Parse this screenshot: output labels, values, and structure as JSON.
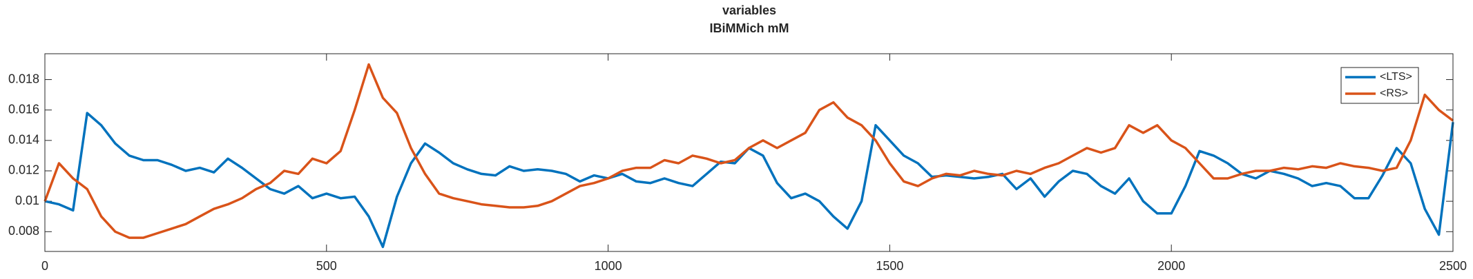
{
  "chart_data": {
    "type": "line",
    "title": "variables",
    "subtitle": "IBiMMich mM",
    "x": [
      0,
      25,
      50,
      75,
      100,
      125,
      150,
      175,
      200,
      225,
      250,
      275,
      300,
      325,
      350,
      375,
      400,
      425,
      450,
      475,
      500,
      525,
      550,
      575,
      600,
      625,
      650,
      675,
      700,
      725,
      750,
      775,
      800,
      825,
      850,
      875,
      900,
      925,
      950,
      975,
      1000,
      1025,
      1050,
      1075,
      1100,
      1125,
      1150,
      1175,
      1200,
      1225,
      1250,
      1275,
      1300,
      1325,
      1350,
      1375,
      1400,
      1425,
      1450,
      1475,
      1500,
      1525,
      1550,
      1575,
      1600,
      1625,
      1650,
      1675,
      1700,
      1725,
      1750,
      1775,
      1800,
      1825,
      1850,
      1875,
      1900,
      1925,
      1950,
      1975,
      2000,
      2025,
      2050,
      2075,
      2100,
      2125,
      2150,
      2175,
      2200,
      2225,
      2250,
      2275,
      2300,
      2325,
      2350,
      2375,
      2400,
      2425,
      2450,
      2475,
      2500
    ],
    "series": [
      {
        "name": "<LTS>",
        "color": "#0072BD",
        "values": [
          0.01,
          0.0098,
          0.0094,
          0.0158,
          0.015,
          0.0138,
          0.013,
          0.0127,
          0.0127,
          0.0124,
          0.012,
          0.0122,
          0.0119,
          0.0128,
          0.0122,
          0.0115,
          0.0108,
          0.0105,
          0.011,
          0.0102,
          0.0105,
          0.0102,
          0.0103,
          0.009,
          0.007,
          0.0103,
          0.0125,
          0.0138,
          0.0132,
          0.0125,
          0.0121,
          0.0118,
          0.0117,
          0.0123,
          0.012,
          0.0121,
          0.012,
          0.0118,
          0.0113,
          0.0117,
          0.0115,
          0.0118,
          0.0113,
          0.0112,
          0.0115,
          0.0112,
          0.011,
          0.0118,
          0.0126,
          0.0125,
          0.0135,
          0.013,
          0.0112,
          0.0102,
          0.0105,
          0.01,
          0.009,
          0.0082,
          0.01,
          0.015,
          0.014,
          0.013,
          0.0125,
          0.0116,
          0.0117,
          0.0116,
          0.0115,
          0.0116,
          0.0118,
          0.0108,
          0.0115,
          0.0103,
          0.0113,
          0.012,
          0.0118,
          0.011,
          0.0105,
          0.0115,
          0.01,
          0.0092,
          0.0092,
          0.011,
          0.0133,
          0.013,
          0.0125,
          0.0118,
          0.0115,
          0.012,
          0.0118,
          0.0115,
          0.011,
          0.0112,
          0.011,
          0.0102,
          0.0102,
          0.0117,
          0.0135,
          0.0125,
          0.0095,
          0.0078,
          0.0152
        ]
      },
      {
        "name": "<RS>",
        "color": "#D95319",
        "values": [
          0.01,
          0.0125,
          0.0115,
          0.0108,
          0.009,
          0.008,
          0.0076,
          0.0076,
          0.0079,
          0.0082,
          0.0085,
          0.009,
          0.0095,
          0.0098,
          0.0102,
          0.0108,
          0.0112,
          0.012,
          0.0118,
          0.0128,
          0.0125,
          0.0133,
          0.016,
          0.019,
          0.0168,
          0.0158,
          0.0135,
          0.0118,
          0.0105,
          0.0102,
          0.01,
          0.0098,
          0.0097,
          0.0096,
          0.0096,
          0.0097,
          0.01,
          0.0105,
          0.011,
          0.0112,
          0.0115,
          0.012,
          0.0122,
          0.0122,
          0.0127,
          0.0125,
          0.013,
          0.0128,
          0.0125,
          0.0127,
          0.0135,
          0.014,
          0.0135,
          0.014,
          0.0145,
          0.016,
          0.0165,
          0.0155,
          0.015,
          0.014,
          0.0125,
          0.0113,
          0.011,
          0.0115,
          0.0118,
          0.0117,
          0.012,
          0.0118,
          0.0117,
          0.012,
          0.0118,
          0.0122,
          0.0125,
          0.013,
          0.0135,
          0.0132,
          0.0135,
          0.015,
          0.0145,
          0.015,
          0.014,
          0.0135,
          0.0125,
          0.0115,
          0.0115,
          0.0118,
          0.012,
          0.012,
          0.0122,
          0.0121,
          0.0123,
          0.0122,
          0.0125,
          0.0123,
          0.0122,
          0.012,
          0.0122,
          0.014,
          0.017,
          0.016,
          0.0153
        ]
      }
    ],
    "xlim": [
      0,
      2500
    ],
    "xticks": [
      0,
      500,
      1000,
      1500,
      2000,
      2500
    ],
    "ylim": [
      0.0067,
      0.0197
    ],
    "yticks": [
      0.008,
      0.01,
      0.012,
      0.014,
      0.016,
      0.018
    ],
    "grid": false,
    "legend": "northeast"
  }
}
